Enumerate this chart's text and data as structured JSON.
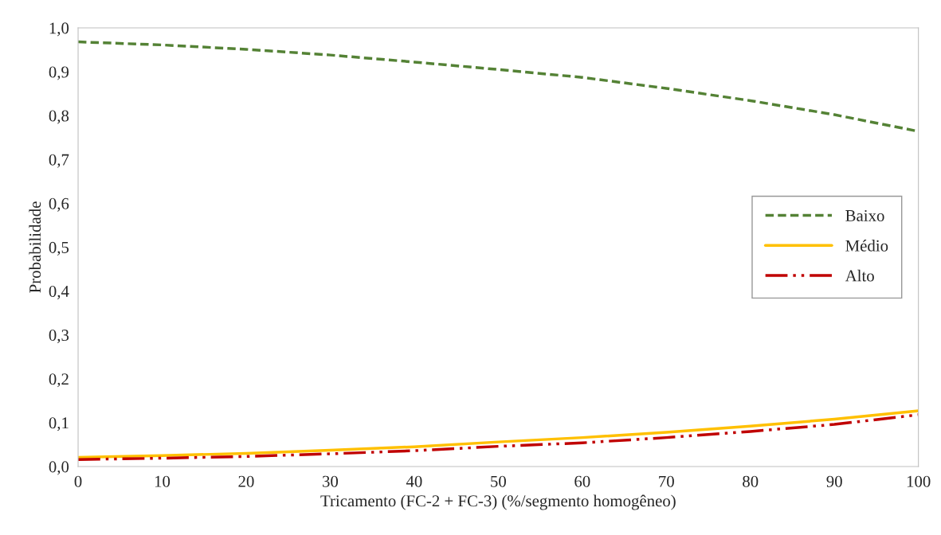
{
  "chart_data": {
    "type": "line",
    "xlabel": "Tricamento (FC-2 + FC-3) (%/segmento homogêneo)",
    "ylabel": "Probabilidade",
    "x": [
      0,
      10,
      20,
      30,
      40,
      50,
      60,
      70,
      80,
      90,
      100
    ],
    "series": [
      {
        "name": "Baixo",
        "color": "#548235",
        "line_style": "dashed",
        "values": [
          0.968,
          0.961,
          0.951,
          0.938,
          0.922,
          0.905,
          0.887,
          0.862,
          0.834,
          0.802,
          0.764
        ]
      },
      {
        "name": "Médio",
        "color": "#ffc000",
        "line_style": "solid",
        "values": [
          0.021,
          0.025,
          0.03,
          0.037,
          0.045,
          0.056,
          0.066,
          0.078,
          0.092,
          0.108,
          0.127
        ]
      },
      {
        "name": "Alto",
        "color": "#c00000",
        "line_style": "dashdotdot",
        "values": [
          0.016,
          0.019,
          0.023,
          0.029,
          0.036,
          0.046,
          0.054,
          0.066,
          0.08,
          0.096,
          0.118
        ]
      }
    ],
    "xlim": [
      0,
      100
    ],
    "xticks": [
      0,
      10,
      20,
      30,
      40,
      50,
      60,
      70,
      80,
      90,
      100
    ],
    "ylim": [
      0,
      1
    ],
    "yticks": [
      {
        "value": 0,
        "label": "0,0"
      },
      {
        "value": 0.1,
        "label": "0,1"
      },
      {
        "value": 0.2,
        "label": "0,2"
      },
      {
        "value": 0.3,
        "label": "0,3"
      },
      {
        "value": 0.4,
        "label": "0,4"
      },
      {
        "value": 0.5,
        "label": "0,5"
      },
      {
        "value": 0.6,
        "label": "0,6"
      },
      {
        "value": 0.7,
        "label": "0,7"
      },
      {
        "value": 0.8,
        "label": "0,8"
      },
      {
        "value": 0.9,
        "label": "0,9"
      },
      {
        "value": 1,
        "label": "1,0"
      }
    ],
    "grid": false,
    "legend": "right",
    "marker": "none"
  }
}
